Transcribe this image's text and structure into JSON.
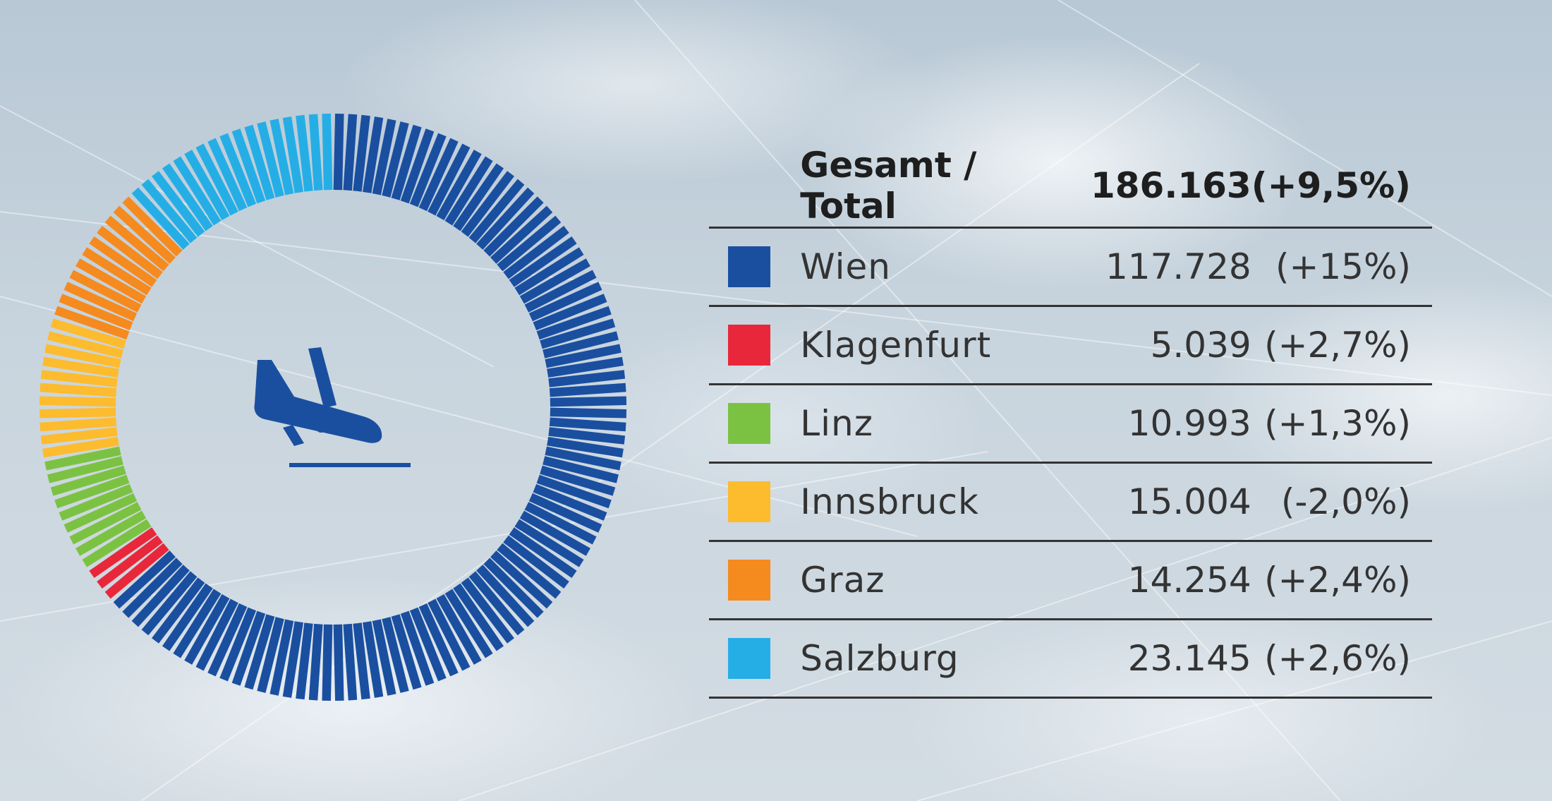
{
  "chart_data": {
    "type": "pie",
    "style": "segmented donut",
    "center_icon": "airplane-landing-icon",
    "total": {
      "label": "Gesamt / Total",
      "value": "186.163",
      "change": "(+9,5%)"
    },
    "slices": [
      {
        "label": "Wien",
        "value": 117728,
        "display": "117.728",
        "change": "(+15%)",
        "color": "#1a4fa0"
      },
      {
        "label": "Klagenfurt",
        "value": 5039,
        "display": "5.039",
        "change": "(+2,7%)",
        "color": "#e8283a"
      },
      {
        "label": "Linz",
        "value": 10993,
        "display": "10.993",
        "change": "(+1,3%)",
        "color": "#7cc242"
      },
      {
        "label": "Innsbruck",
        "value": 15004,
        "display": "15.004",
        "change": "(-2,0%)",
        "color": "#fdbb2e"
      },
      {
        "label": "Graz",
        "value": 14254,
        "display": "14.254",
        "change": "(+2,4%)",
        "color": "#f58a1f"
      },
      {
        "label": "Salzburg",
        "value": 23145,
        "display": "23.145",
        "change": "(+2,6%)",
        "color": "#25aee6"
      }
    ]
  }
}
